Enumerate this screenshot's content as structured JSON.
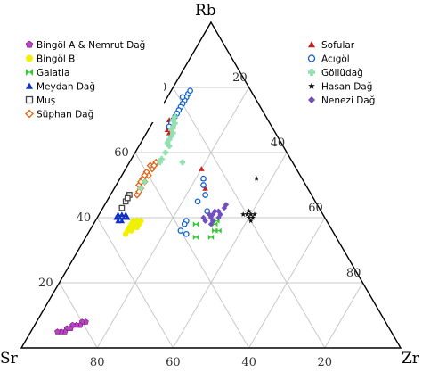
{
  "chart_data": {
    "type": "scatter",
    "subtype": "ternary",
    "apices": {
      "top": "Rb",
      "left": "Sr",
      "right": "Zr"
    },
    "grid_step": 20,
    "ticks": {
      "left_edge": [
        "20",
        "40",
        "60",
        "80"
      ],
      "right_edge": [
        "20",
        "40",
        "60",
        "80"
      ],
      "bottom_edge": [
        "80",
        "60",
        "40",
        "20"
      ]
    },
    "legend_left": [
      "Bingöl A & Nemrut Dağ",
      "Bingöl B",
      "Galatia",
      "Meydan Dağ",
      "Muş",
      "Süphan Dağ"
    ],
    "legend_right": [
      "Sofular",
      "Acıgöl",
      "Göllüdağ",
      "Hasan Dağ",
      "Nenezi Dağ"
    ],
    "series": [
      {
        "name": "Bingöl A & Nemrut Dağ",
        "marker": "pentagon",
        "color": "#c040c8",
        "points": [
          [
            8,
            79,
            13
          ],
          [
            8,
            80,
            12
          ],
          [
            7,
            81,
            12
          ],
          [
            7,
            82,
            11
          ],
          [
            7,
            83,
            10
          ],
          [
            6,
            84,
            10
          ],
          [
            6,
            85,
            9
          ],
          [
            5,
            86,
            9
          ],
          [
            5,
            87,
            8
          ],
          [
            5,
            88,
            7
          ]
        ]
      },
      {
        "name": "Bingöl B",
        "marker": "circle",
        "color": "#f0f000",
        "points": [
          [
            39,
            49,
            12
          ],
          [
            39,
            50,
            11
          ],
          [
            38,
            51,
            11
          ],
          [
            37,
            53,
            10
          ],
          [
            38,
            52,
            10
          ],
          [
            36,
            54,
            10
          ],
          [
            38,
            50,
            12
          ],
          [
            37,
            51,
            12
          ],
          [
            36,
            53,
            11
          ],
          [
            35,
            55,
            10
          ],
          [
            37,
            52,
            11
          ],
          [
            39,
            51,
            10
          ]
        ]
      },
      {
        "name": "Galatia",
        "marker": "bowtie",
        "color": "#33cc33",
        "points": [
          [
            38,
            30,
            32
          ],
          [
            36,
            31,
            33
          ],
          [
            34,
            33,
            33
          ],
          [
            38,
            35,
            27
          ],
          [
            34,
            37,
            29
          ],
          [
            36,
            30,
            34
          ],
          [
            39,
            29,
            32
          ]
        ]
      },
      {
        "name": "Meydan Dağ",
        "marker": "triangle",
        "color": "#1030c0",
        "points": [
          [
            41,
            52,
            7
          ],
          [
            40,
            53,
            7
          ],
          [
            40,
            54,
            6
          ],
          [
            39,
            55,
            6
          ],
          [
            41,
            53,
            6
          ],
          [
            40,
            55,
            5
          ],
          [
            39,
            54,
            7
          ],
          [
            41,
            54,
            5
          ],
          [
            40,
            52,
            8
          ]
        ]
      },
      {
        "name": "Muş",
        "marker": "square-open",
        "color": "#444444",
        "points": [
          [
            47,
            48,
            5
          ],
          [
            45,
            50,
            5
          ],
          [
            43,
            52,
            5
          ],
          [
            46,
            49,
            5
          ]
        ]
      },
      {
        "name": "Süphan Dağ",
        "marker": "diamond-open",
        "color": "#e06010",
        "points": [
          [
            57,
            36,
            7
          ],
          [
            55,
            38,
            7
          ],
          [
            53,
            40,
            7
          ],
          [
            51,
            42,
            7
          ],
          [
            49,
            44,
            7
          ],
          [
            47,
            46,
            7
          ],
          [
            56,
            38,
            6
          ],
          [
            54,
            40,
            6
          ],
          [
            52,
            42,
            6
          ],
          [
            50,
            44,
            6
          ],
          [
            56,
            37,
            7
          ],
          [
            53,
            41,
            6
          ],
          [
            51,
            43,
            6
          ],
          [
            48,
            45,
            7
          ]
        ]
      },
      {
        "name": "Sofular",
        "marker": "triangle",
        "color": "#cc2020",
        "points": [
          [
            70,
            25,
            5
          ],
          [
            69,
            26,
            5
          ],
          [
            68,
            26,
            6
          ],
          [
            67,
            27,
            6
          ],
          [
            66,
            28,
            6
          ],
          [
            55,
            25,
            20
          ],
          [
            52,
            26,
            22
          ],
          [
            49,
            27,
            24
          ],
          [
            70,
            26,
            4
          ],
          [
            67,
            28,
            5
          ]
        ]
      },
      {
        "name": "Acıgöl",
        "marker": "circle-open",
        "color": "#1060d0",
        "points": [
          [
            78,
            17,
            5
          ],
          [
            77,
            18,
            5
          ],
          [
            76,
            19,
            5
          ],
          [
            75,
            20,
            5
          ],
          [
            74,
            21,
            5
          ],
          [
            73,
            22,
            5
          ],
          [
            72,
            23,
            5
          ],
          [
            71,
            24,
            5
          ],
          [
            70,
            25,
            5
          ],
          [
            69,
            26,
            5
          ],
          [
            68,
            27,
            5
          ],
          [
            52,
            26,
            22
          ],
          [
            50,
            27,
            23
          ],
          [
            47,
            28,
            25
          ],
          [
            45,
            31,
            24
          ],
          [
            42,
            30,
            28
          ],
          [
            39,
            37,
            24
          ],
          [
            38,
            38,
            24
          ],
          [
            36,
            40,
            24
          ],
          [
            35,
            39,
            26
          ],
          [
            79,
            16,
            5
          ],
          [
            77,
            19,
            4
          ]
        ]
      },
      {
        "name": "Göllüdağ",
        "marker": "cross",
        "color": "#90e0b0",
        "points": [
          [
            70,
            25,
            5
          ],
          [
            69,
            25,
            6
          ],
          [
            68,
            26,
            6
          ],
          [
            67,
            27,
            6
          ],
          [
            66,
            27,
            7
          ],
          [
            65,
            28,
            7
          ],
          [
            64,
            29,
            7
          ],
          [
            63,
            30,
            7
          ],
          [
            60,
            32,
            8
          ],
          [
            58,
            34,
            8
          ],
          [
            57,
            35,
            8
          ],
          [
            57,
            29,
            14
          ],
          [
            51,
            42,
            7
          ],
          [
            49,
            44,
            7
          ],
          [
            71,
            24,
            5
          ],
          [
            62,
            30,
            8
          ]
        ]
      },
      {
        "name": "Hasan Dağ",
        "marker": "star",
        "color": "#111111",
        "points": [
          [
            52,
            12,
            36
          ],
          [
            41,
            18,
            41
          ],
          [
            41,
            19,
            40
          ],
          [
            40,
            19,
            41
          ],
          [
            41,
            20,
            39
          ],
          [
            40,
            20,
            40
          ],
          [
            42,
            19,
            39
          ],
          [
            41,
            21,
            38
          ],
          [
            39,
            20,
            41
          ]
        ]
      },
      {
        "name": "Nenezi Dağ",
        "marker": "diamond",
        "color": "#7050c0",
        "points": [
          [
            44,
            24,
            32
          ],
          [
            41,
            27,
            32
          ],
          [
            40,
            28,
            32
          ],
          [
            43,
            25,
            32
          ],
          [
            39,
            30,
            31
          ],
          [
            42,
            27,
            31
          ],
          [
            41,
            29,
            30
          ],
          [
            40,
            30,
            30
          ],
          [
            38,
            31,
            31
          ],
          [
            42,
            28,
            30
          ],
          [
            40,
            32,
            28
          ],
          [
            39,
            32,
            29
          ],
          [
            41,
            30,
            29
          ]
        ]
      }
    ]
  }
}
